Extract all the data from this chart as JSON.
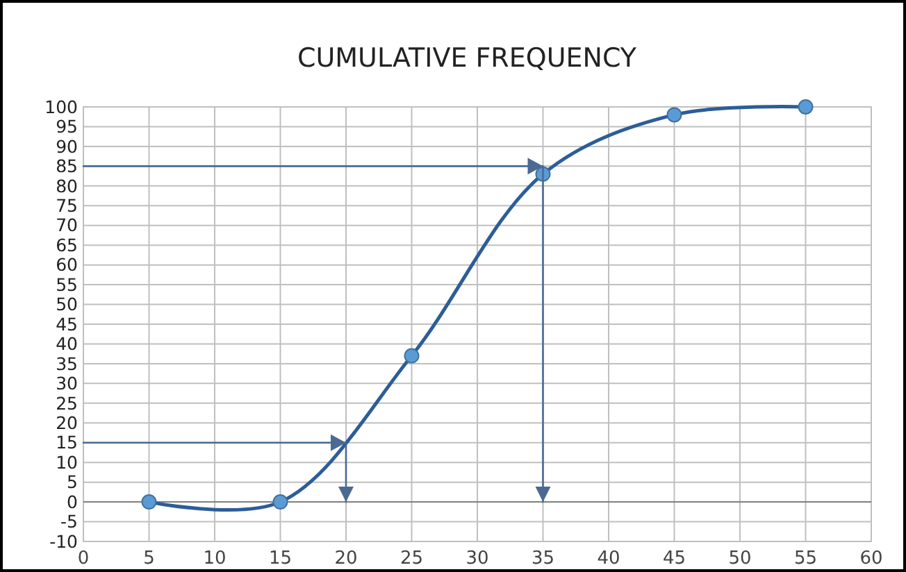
{
  "chart_data": {
    "type": "line",
    "title": "CUMULATIVE FREQUENCY",
    "xlim": [
      0,
      60
    ],
    "xticks": [
      0,
      5,
      10,
      15,
      20,
      25,
      30,
      35,
      40,
      45,
      50,
      55,
      60
    ],
    "ylim": [
      -10,
      100
    ],
    "yticks": [
      -10,
      -5,
      0,
      5,
      10,
      15,
      20,
      25,
      30,
      35,
      40,
      45,
      50,
      55,
      60,
      65,
      70,
      75,
      80,
      85,
      90,
      95,
      100
    ],
    "grid": true,
    "series": [
      {
        "color": "#2c5d98",
        "x": [
          5,
          15,
          25,
          35,
          45,
          55
        ],
        "values": [
          0,
          0,
          37,
          83,
          98,
          100
        ],
        "marker": "circle",
        "line_style": "solid"
      },
      {
        "color": "#4a6a94",
        "x": [
          0,
          20,
          20
        ],
        "values": [
          15,
          15,
          0
        ],
        "marker": "none",
        "line_style": "solid"
      },
      {
        "color": "#4a6a94",
        "x": [
          0,
          35,
          35
        ],
        "values": [
          85,
          85,
          0
        ],
        "marker": "none",
        "line_style": "solid"
      }
    ]
  }
}
